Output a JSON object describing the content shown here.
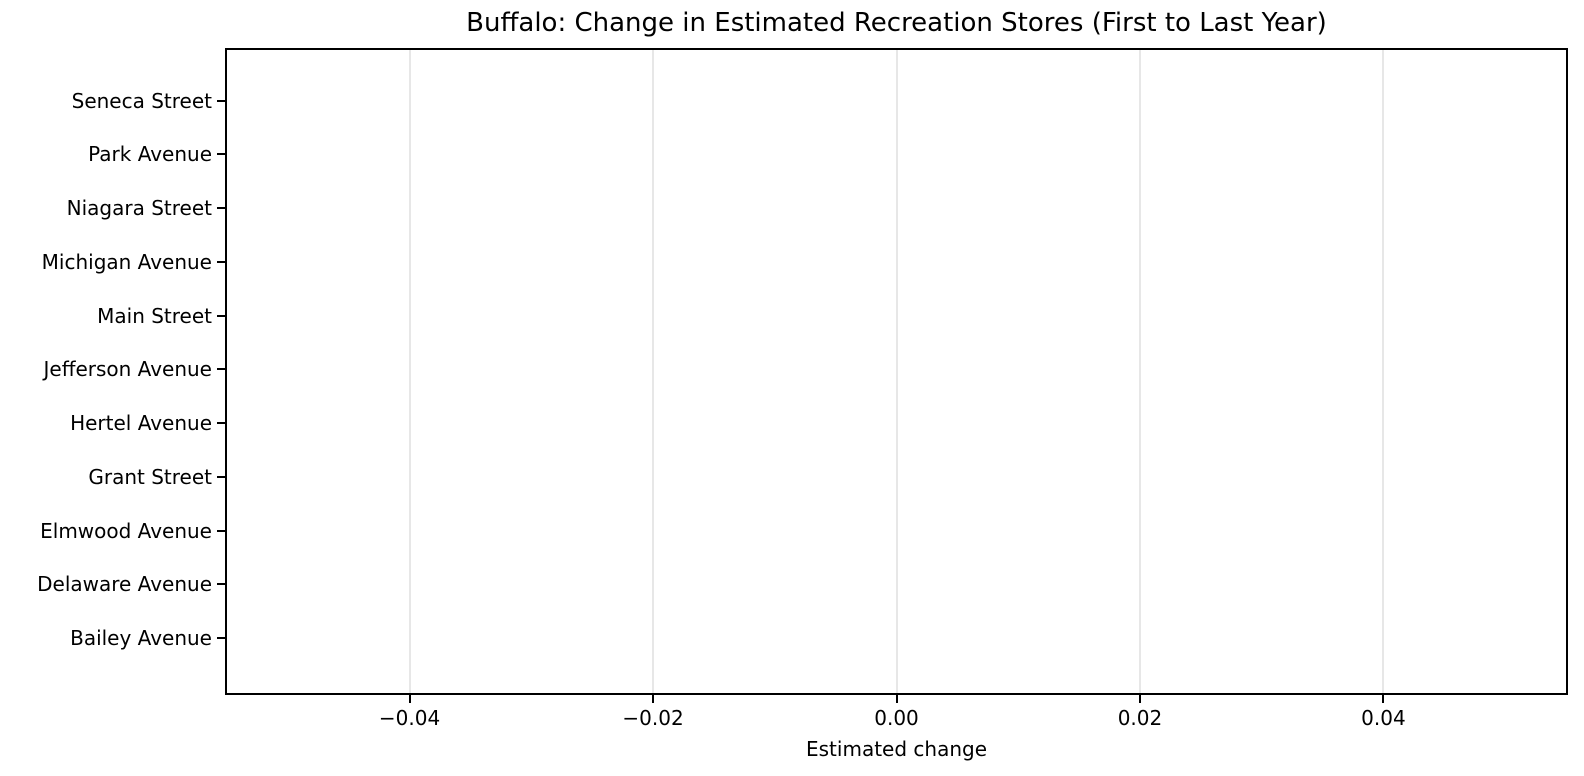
{
  "chart_data": {
    "type": "bar",
    "orientation": "horizontal",
    "title": "Buffalo: Change in Estimated Recreation Stores (First to Last Year)",
    "xlabel": "Estimated change",
    "ylabel": "",
    "categories": [
      "Seneca Street",
      "Park Avenue",
      "Niagara Street",
      "Michigan Avenue",
      "Main Street",
      "Jefferson Avenue",
      "Hertel Avenue",
      "Grant Street",
      "Elmwood Avenue",
      "Delaware Avenue",
      "Bailey Avenue"
    ],
    "values": [
      0,
      0,
      0,
      0,
      0,
      0,
      0,
      0,
      0,
      0,
      0
    ],
    "xlim": [
      -0.055,
      0.055
    ],
    "xticks": [
      -0.04,
      -0.02,
      0,
      0.02,
      0.04
    ],
    "xtick_labels": [
      "−0.04",
      "−0.02",
      "0.00",
      "0.02",
      "0.04"
    ],
    "grid": "vertical",
    "legend": "none",
    "colors": {
      "background": "#ffffff",
      "gridline": "#e7e7e7",
      "axis": "#000000",
      "text": "#000000"
    }
  }
}
